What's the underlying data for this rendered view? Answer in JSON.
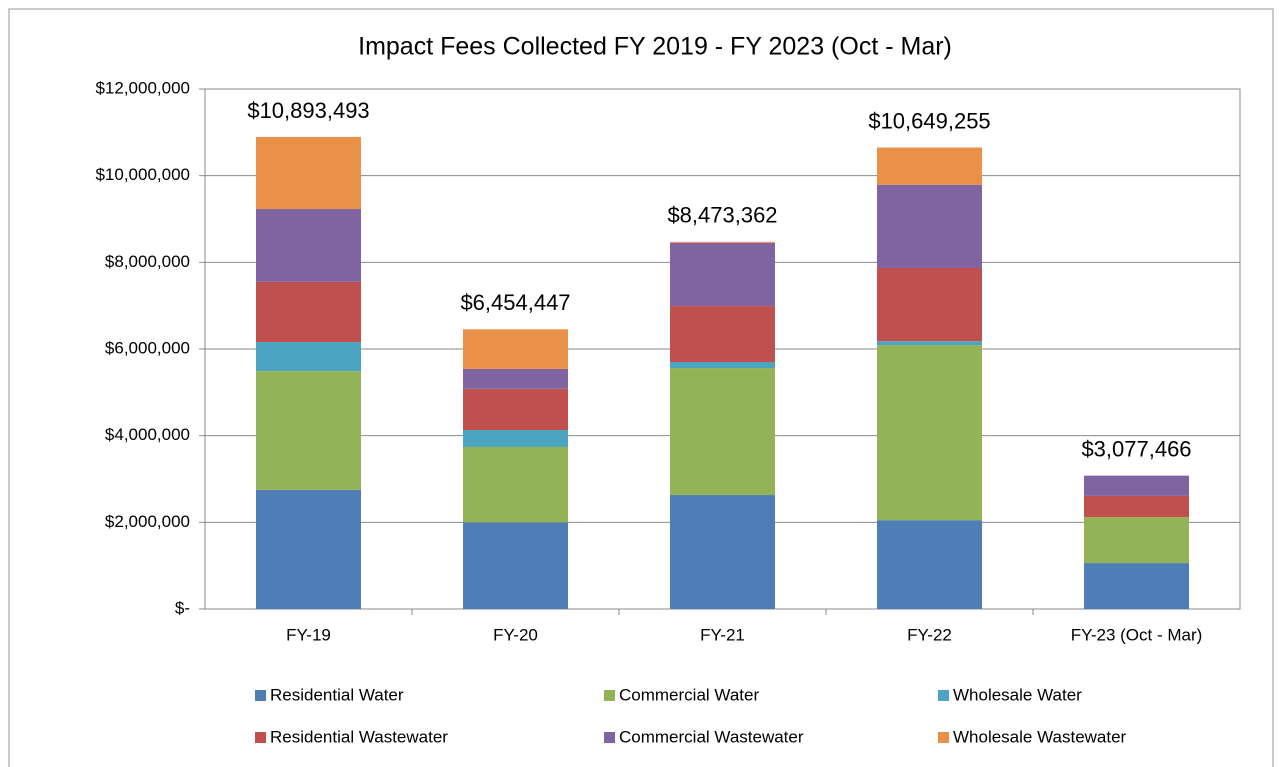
{
  "chart_data": {
    "type": "stacked_bar",
    "title": "Impact Fees Collected FY 2019 - FY 2023 (Oct - Mar)",
    "categories": [
      "FY-19",
      "FY-20",
      "FY-21",
      "FY-22",
      "FY-23 (Oct - Mar)"
    ],
    "series": [
      {
        "name": "Residential Water",
        "color": "#4f7db6",
        "values": [
          2750000,
          2000000,
          2630000,
          2050000,
          1060000
        ]
      },
      {
        "name": "Commercial Water",
        "color": "#94b256",
        "values": [
          2740000,
          1740000,
          2930000,
          4040000,
          1060000
        ]
      },
      {
        "name": "Wholesale Water",
        "color": "#4ba5c1",
        "values": [
          670000,
          390000,
          140000,
          90000,
          0
        ]
      },
      {
        "name": "Residential Wastewater",
        "color": "#c0504d",
        "values": [
          1390000,
          950000,
          1290000,
          1690000,
          490000
        ]
      },
      {
        "name": "Commercial Wastewater",
        "color": "#8064a2",
        "values": [
          1680000,
          460000,
          1460000,
          1920000,
          467466
        ]
      },
      {
        "name": "Wholesale Wastewater",
        "color": "#e99149",
        "values": [
          1663493,
          914447,
          23362,
          859255,
          0
        ]
      }
    ],
    "totals": [
      10893493,
      6454447,
      8473362,
      10649255,
      3077466
    ],
    "total_labels": [
      "$10,893,493",
      "$6,454,447",
      "$8,473,362",
      "$10,649,255",
      "$3,077,466"
    ],
    "ylim": [
      0,
      12000000
    ],
    "yticks": [
      {
        "value": 0,
        "label": "$-"
      },
      {
        "value": 2000000,
        "label": "$2,000,000"
      },
      {
        "value": 4000000,
        "label": "$4,000,000"
      },
      {
        "value": 6000000,
        "label": "$6,000,000"
      },
      {
        "value": 8000000,
        "label": "$8,000,000"
      },
      {
        "value": 10000000,
        "label": "$10,000,000"
      },
      {
        "value": 12000000,
        "label": "$12,000,000"
      }
    ],
    "grid": true,
    "legend": "bottom"
  }
}
